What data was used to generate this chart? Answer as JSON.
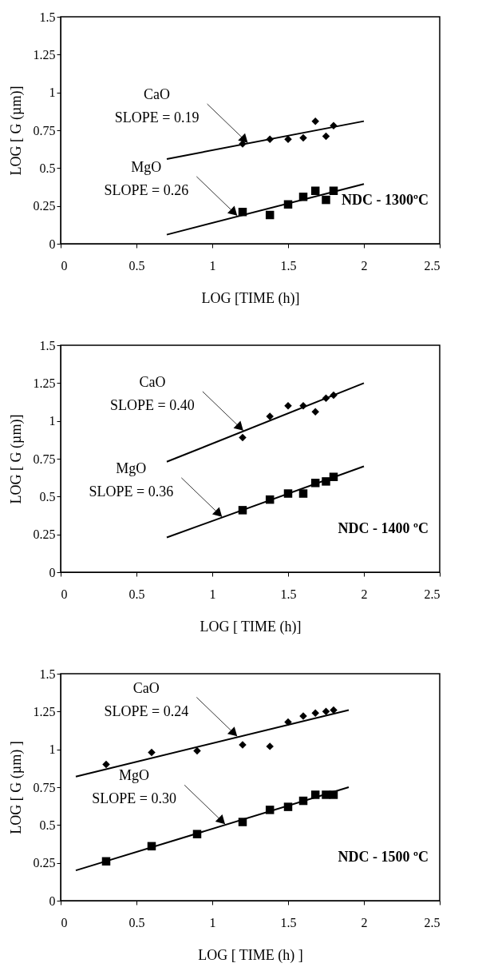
{
  "chart_data": [
    {
      "type": "scatter",
      "xlabel": "LOG [TIME (h)]",
      "ylabel": "LOG [ G (µm)]",
      "xlim": [
        0,
        2.5
      ],
      "ylim": [
        0,
        1.5
      ],
      "xticks": [
        0,
        0.5,
        1,
        1.5,
        2,
        2.5
      ],
      "yticks": [
        0,
        0.25,
        0.5,
        0.75,
        1,
        1.25,
        1.5
      ],
      "series": [
        {
          "type": "scatter",
          "marker": "diamond",
          "color": "#000000",
          "x": [
            1.2,
            1.38,
            1.5,
            1.6,
            1.68,
            1.75,
            1.8
          ],
          "values": [
            0.66,
            0.69,
            0.69,
            0.7,
            0.81,
            0.71,
            0.78
          ]
        },
        {
          "type": "scatter",
          "marker": "square",
          "color": "#000000",
          "x": [
            1.2,
            1.38,
            1.5,
            1.6,
            1.68,
            1.75,
            1.8
          ],
          "values": [
            0.21,
            0.19,
            0.26,
            0.31,
            0.35,
            0.29,
            0.35
          ]
        },
        {
          "type": "line",
          "color": "#000000",
          "x": [
            0.7,
            2
          ],
          "values": [
            0.56,
            0.81
          ]
        },
        {
          "type": "line",
          "color": "#000000",
          "x": [
            0.7,
            2
          ],
          "values": [
            0.06,
            0.395
          ]
        }
      ],
      "annotations": [
        {
          "text": "CaO\nSLOPE = 0.19",
          "x": 1.24,
          "y": 0.66
        },
        {
          "text": "MgO\nSLOPE = 0.26",
          "x": 1.17,
          "y": 0.18
        },
        "NDC - 1300ºC"
      ]
    },
    {
      "type": "scatter",
      "xlabel": "LOG [ TIME (h)]",
      "ylabel": "LOG [ G (µm)]",
      "xlim": [
        0,
        2.5
      ],
      "ylim": [
        0,
        1.5
      ],
      "xticks": [
        0,
        0.5,
        1,
        1.5,
        2,
        2.5
      ],
      "yticks": [
        0,
        0.25,
        0.5,
        0.75,
        1,
        1.25,
        1.5
      ],
      "series": [
        {
          "type": "scatter",
          "marker": "diamond",
          "color": "#000000",
          "x": [
            1.2,
            1.38,
            1.5,
            1.6,
            1.68,
            1.75,
            1.8
          ],
          "values": [
            0.89,
            1.03,
            1.1,
            1.1,
            1.06,
            1.15,
            1.17
          ]
        },
        {
          "type": "scatter",
          "marker": "square",
          "color": "#000000",
          "x": [
            1.2,
            1.38,
            1.5,
            1.6,
            1.68,
            1.75,
            1.8
          ],
          "values": [
            0.41,
            0.48,
            0.52,
            0.52,
            0.59,
            0.6,
            0.63
          ]
        },
        {
          "type": "line",
          "color": "#000000",
          "x": [
            0.7,
            2
          ],
          "values": [
            0.73,
            1.25
          ]
        },
        {
          "type": "line",
          "color": "#000000",
          "x": [
            0.7,
            2
          ],
          "values": [
            0.23,
            0.7
          ]
        }
      ],
      "annotations": [
        {
          "text": "CaO\nSLOPE = 0.40",
          "x": 1.21,
          "y": 0.93
        },
        {
          "text": "MgO\nSLOPE = 0.36",
          "x": 1.07,
          "y": 0.36
        },
        "NDC - 1400 ºC"
      ]
    },
    {
      "type": "scatter",
      "xlabel": "LOG [ TIME (h) ]",
      "ylabel": "LOG [ G (µm) ]",
      "xlim": [
        0,
        2.5
      ],
      "ylim": [
        0,
        1.5
      ],
      "xticks": [
        0,
        0.5,
        1,
        1.5,
        2,
        2.5
      ],
      "yticks": [
        0,
        0.25,
        0.5,
        0.75,
        1,
        1.25,
        1.5
      ],
      "series": [
        {
          "type": "scatter",
          "marker": "diamond",
          "color": "#000000",
          "x": [
            0.3,
            0.6,
            0.9,
            1.2,
            1.38,
            1.5,
            1.6,
            1.68,
            1.75,
            1.8
          ],
          "values": [
            0.9,
            0.98,
            0.99,
            1.03,
            1.02,
            1.18,
            1.22,
            1.24,
            1.25,
            1.26
          ]
        },
        {
          "type": "scatter",
          "marker": "square",
          "color": "#000000",
          "x": [
            0.3,
            0.6,
            0.9,
            1.2,
            1.38,
            1.5,
            1.6,
            1.68,
            1.75,
            1.8
          ],
          "values": [
            0.26,
            0.36,
            0.44,
            0.52,
            0.6,
            0.62,
            0.66,
            0.7,
            0.7,
            0.7
          ]
        },
        {
          "type": "line",
          "color": "#000000",
          "x": [
            0.1,
            1.9
          ],
          "values": [
            0.82,
            1.26
          ]
        },
        {
          "type": "line",
          "color": "#000000",
          "x": [
            0.1,
            1.9
          ],
          "values": [
            0.2,
            0.75
          ]
        }
      ],
      "annotations": [
        {
          "text": "CaO\nSLOPE = 0.24",
          "x": 1.17,
          "y": 1.08
        },
        {
          "text": "MgO\nSLOPE = 0.30",
          "x": 1.09,
          "y": 0.5
        },
        "NDC - 1500 ºC"
      ]
    }
  ]
}
